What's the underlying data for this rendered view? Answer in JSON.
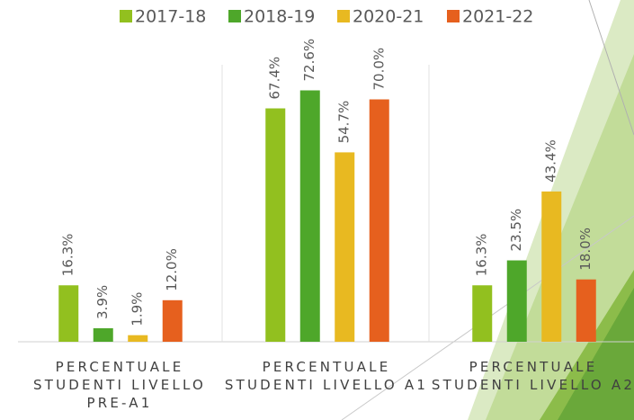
{
  "chart_data": {
    "type": "bar",
    "categories": [
      "PERCENTUALE STUDENTI LIVELLO PRE-A1",
      "PERCENTUALE STUDENTI LIVELLO A1",
      "PERCENTUALE STUDENTI LIVELLO A2"
    ],
    "series": [
      {
        "name": "2017-18",
        "color": "#92c01f",
        "values": [
          16.3,
          67.4,
          16.3
        ],
        "value_labels": [
          "16.3%",
          "67.4%",
          "16.3%"
        ]
      },
      {
        "name": "2018-19",
        "color": "#4ea72a",
        "values": [
          3.9,
          72.6,
          23.5
        ],
        "value_labels": [
          "3.9%",
          "72.6%",
          "23.5%"
        ]
      },
      {
        "name": "2020-21",
        "color": "#e8b921",
        "values": [
          1.9,
          54.7,
          43.4
        ],
        "value_labels": [
          "1.9%",
          "54.7%",
          "43.4%"
        ]
      },
      {
        "name": "2021-22",
        "color": "#e6601e",
        "values": [
          12.0,
          70.0,
          18.0
        ],
        "value_labels": [
          "12.0%",
          "70.0%",
          "18.0%"
        ]
      }
    ],
    "ylim": [
      0,
      80
    ],
    "legend": "top"
  }
}
